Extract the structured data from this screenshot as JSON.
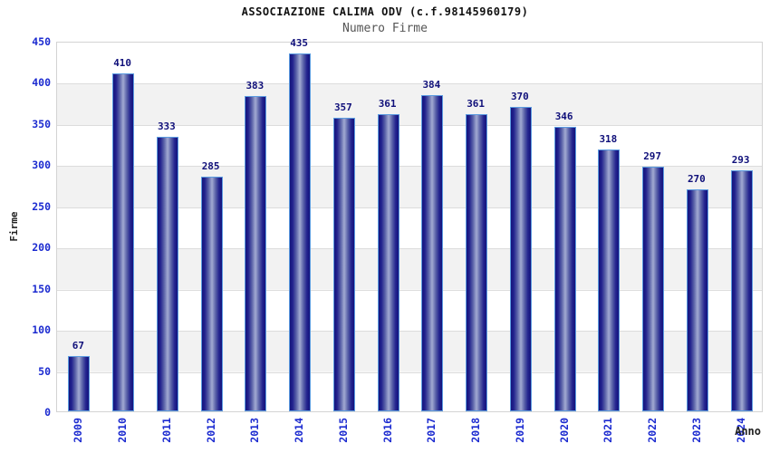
{
  "header": {
    "title": "ASSOCIAZIONE CALIMA ODV (c.f.98145960179)",
    "subtitle": "Numero Firme"
  },
  "chart_data": {
    "type": "bar",
    "title": "ASSOCIAZIONE CALIMA ODV (c.f.98145960179)",
    "subtitle": "Numero Firme",
    "xlabel": "Anno",
    "ylabel": "Firme",
    "categories": [
      "2009",
      "2010",
      "2011",
      "2012",
      "2013",
      "2014",
      "2015",
      "2016",
      "2017",
      "2018",
      "2019",
      "2020",
      "2021",
      "2022",
      "2023",
      "2024"
    ],
    "values": [
      67,
      410,
      333,
      285,
      383,
      435,
      357,
      361,
      384,
      361,
      370,
      346,
      318,
      297,
      270,
      293
    ],
    "ylim": [
      0,
      450
    ],
    "ytick_step": 50,
    "grid": true,
    "legend_position": "none",
    "colors": {
      "bar_edge_dark": "#14147c",
      "bar_center_light": "#a2aad2",
      "bar_border": "#5b9be0",
      "axis_tick_text": "#1c2bd0",
      "value_label_text": "#10107a",
      "band_gray": "#f2f2f2",
      "gridline": "#dcdcdc",
      "title_text": "#111111",
      "subtitle_text": "#555555"
    }
  }
}
